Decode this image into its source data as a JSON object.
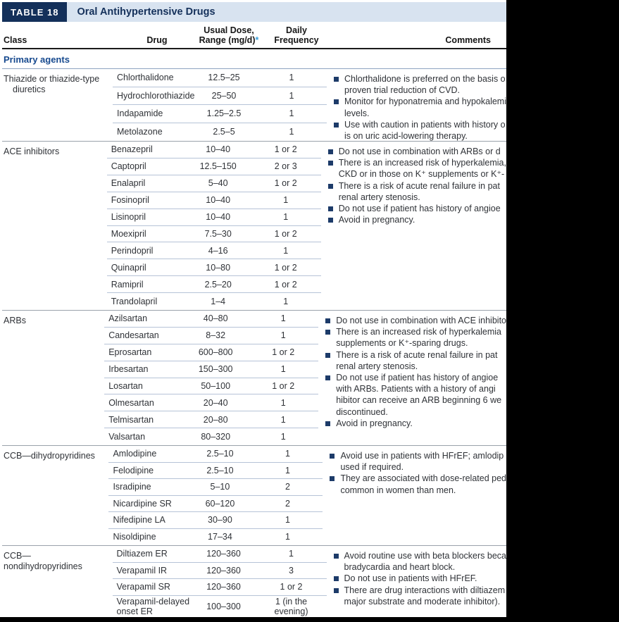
{
  "title_bar": {
    "badge": "TABLE 18",
    "title": "Oral Antihypertensive Drugs"
  },
  "columns": {
    "class": "Class",
    "drug": "Drug",
    "dose_line1": "Usual Dose,",
    "dose_line2": "Range (mg/d)",
    "dose_asterisk": "*",
    "freq_line1": "Daily",
    "freq_line2": "Frequency",
    "comments": "Comments"
  },
  "group_header": "Primary agents",
  "colors": {
    "navy": "#14305a",
    "title_strip": "#d8e3f0",
    "group_header_blue": "#174a8f",
    "bullet_navy": "#1d3b69",
    "asterisk_blue": "#3aa0dc",
    "row_divider": "#b6c3d7",
    "section_divider": "#9aa2ab"
  },
  "sections": [
    {
      "class_lines": [
        "Thiazide or thiazide-type",
        "diuretics"
      ],
      "drugs": [
        {
          "name_lines": [
            "Chlorthalidone"
          ],
          "dose": "12.5–25",
          "freq_lines": [
            "1"
          ]
        },
        {
          "name_lines": [
            "Hydrochlorothiazide"
          ],
          "dose": "25–50",
          "freq_lines": [
            "1"
          ]
        },
        {
          "name_lines": [
            "Indapamide"
          ],
          "dose": "1.25–2.5",
          "freq_lines": [
            "1"
          ]
        },
        {
          "name_lines": [
            "Metolazone"
          ],
          "dose": "2.5–5",
          "freq_lines": [
            "1"
          ]
        }
      ],
      "comments": [
        [
          "Chlorthalidone is preferred on the basis o",
          "proven trial reduction of CVD."
        ],
        [
          "Monitor for hyponatremia and hypokalemi",
          "levels."
        ],
        [
          "Use with caution in patients with history o",
          "is on uric acid-lowering therapy."
        ]
      ]
    },
    {
      "class_lines": [
        "ACE inhibitors"
      ],
      "drugs": [
        {
          "name_lines": [
            "Benazepril"
          ],
          "dose": "10–40",
          "freq_lines": [
            "1 or 2"
          ]
        },
        {
          "name_lines": [
            "Captopril"
          ],
          "dose": "12.5–150",
          "freq_lines": [
            "2 or 3"
          ]
        },
        {
          "name_lines": [
            "Enalapril"
          ],
          "dose": "5–40",
          "freq_lines": [
            "1 or 2"
          ]
        },
        {
          "name_lines": [
            "Fosinopril"
          ],
          "dose": "10–40",
          "freq_lines": [
            "1"
          ]
        },
        {
          "name_lines": [
            "Lisinopril"
          ],
          "dose": "10–40",
          "freq_lines": [
            "1"
          ]
        },
        {
          "name_lines": [
            "Moexipril"
          ],
          "dose": "7.5–30",
          "freq_lines": [
            "1 or 2"
          ]
        },
        {
          "name_lines": [
            "Perindopril"
          ],
          "dose": "4–16",
          "freq_lines": [
            "1"
          ]
        },
        {
          "name_lines": [
            "Quinapril"
          ],
          "dose": "10–80",
          "freq_lines": [
            "1 or 2"
          ]
        },
        {
          "name_lines": [
            "Ramipril"
          ],
          "dose": "2.5–20",
          "freq_lines": [
            "1 or 2"
          ]
        },
        {
          "name_lines": [
            "Trandolapril"
          ],
          "dose": "1–4",
          "freq_lines": [
            "1"
          ]
        }
      ],
      "comments": [
        [
          "Do not use in combination with ARBs or d"
        ],
        [
          "There is an increased risk of hyperkalemia,",
          "CKD or in those on K⁺ supplements or K⁺-"
        ],
        [
          "There is a risk of acute renal failure in pat",
          "renal artery stenosis."
        ],
        [
          "Do not use if patient has history of angioe"
        ],
        [
          "Avoid in pregnancy."
        ]
      ]
    },
    {
      "class_lines": [
        "ARBs"
      ],
      "drugs": [
        {
          "name_lines": [
            "Azilsartan"
          ],
          "dose": "40–80",
          "freq_lines": [
            "1"
          ]
        },
        {
          "name_lines": [
            "Candesartan"
          ],
          "dose": "8–32",
          "freq_lines": [
            "1"
          ]
        },
        {
          "name_lines": [
            "Eprosartan"
          ],
          "dose": "600–800",
          "freq_lines": [
            "1 or 2"
          ]
        },
        {
          "name_lines": [
            "Irbesartan"
          ],
          "dose": "150–300",
          "freq_lines": [
            "1"
          ]
        },
        {
          "name_lines": [
            "Losartan"
          ],
          "dose": "50–100",
          "freq_lines": [
            "1 or 2"
          ]
        },
        {
          "name_lines": [
            "Olmesartan"
          ],
          "dose": "20–40",
          "freq_lines": [
            "1"
          ]
        },
        {
          "name_lines": [
            "Telmisartan"
          ],
          "dose": "20–80",
          "freq_lines": [
            "1"
          ]
        },
        {
          "name_lines": [
            "Valsartan"
          ],
          "dose": "80–320",
          "freq_lines": [
            "1"
          ]
        }
      ],
      "comments": [
        [
          "Do not use in combination with ACE inhibito"
        ],
        [
          "There is an increased risk of hyperkalemia",
          "supplements or K⁺-sparing drugs."
        ],
        [
          "There is a risk of acute renal failure in pat",
          "renal artery stenosis."
        ],
        [
          "Do not use if patient has history of angioe",
          "with ARBs. Patients with a history of angi",
          "hibitor can receive an ARB beginning 6 we",
          "discontinued."
        ],
        [
          "Avoid in pregnancy."
        ]
      ]
    },
    {
      "class_lines": [
        "CCB—dihydropyridines"
      ],
      "drugs": [
        {
          "name_lines": [
            "Amlodipine"
          ],
          "dose": "2.5–10",
          "freq_lines": [
            "1"
          ]
        },
        {
          "name_lines": [
            "Felodipine"
          ],
          "dose": "2.5–10",
          "freq_lines": [
            "1"
          ]
        },
        {
          "name_lines": [
            "Isradipine"
          ],
          "dose": "5–10",
          "freq_lines": [
            "2"
          ]
        },
        {
          "name_lines": [
            "Nicardipine SR"
          ],
          "dose": "60–120",
          "freq_lines": [
            "2"
          ]
        },
        {
          "name_lines": [
            "Nifedipine LA"
          ],
          "dose": "30–90",
          "freq_lines": [
            "1"
          ]
        },
        {
          "name_lines": [
            "Nisoldipine"
          ],
          "dose": "17–34",
          "freq_lines": [
            "1"
          ]
        }
      ],
      "comments": [
        [
          "Avoid use in patients with HFrEF; amlodip",
          "used if required."
        ],
        [
          "They are associated with dose-related ped",
          "common in women than men."
        ]
      ]
    },
    {
      "class_lines": [
        "CCB—nondihydropyridines"
      ],
      "drugs": [
        {
          "name_lines": [
            "Diltiazem ER"
          ],
          "dose": "120–360",
          "freq_lines": [
            "1"
          ]
        },
        {
          "name_lines": [
            "Verapamil IR"
          ],
          "dose": "120–360",
          "freq_lines": [
            "3"
          ]
        },
        {
          "name_lines": [
            "Verapamil SR"
          ],
          "dose": "120–360",
          "freq_lines": [
            "1 or 2"
          ]
        },
        {
          "name_lines": [
            "Verapamil-delayed",
            "onset ER"
          ],
          "dose": "100–300",
          "freq_lines": [
            "1 (in the",
            "evening)"
          ]
        }
      ],
      "comments": [
        [
          "Avoid routine use with beta blockers beca",
          "bradycardia and heart block."
        ],
        [
          "Do not use in patients with HFrEF."
        ],
        [
          "There are drug interactions with diltiazem",
          "major substrate and moderate inhibitor)."
        ]
      ]
    }
  ]
}
